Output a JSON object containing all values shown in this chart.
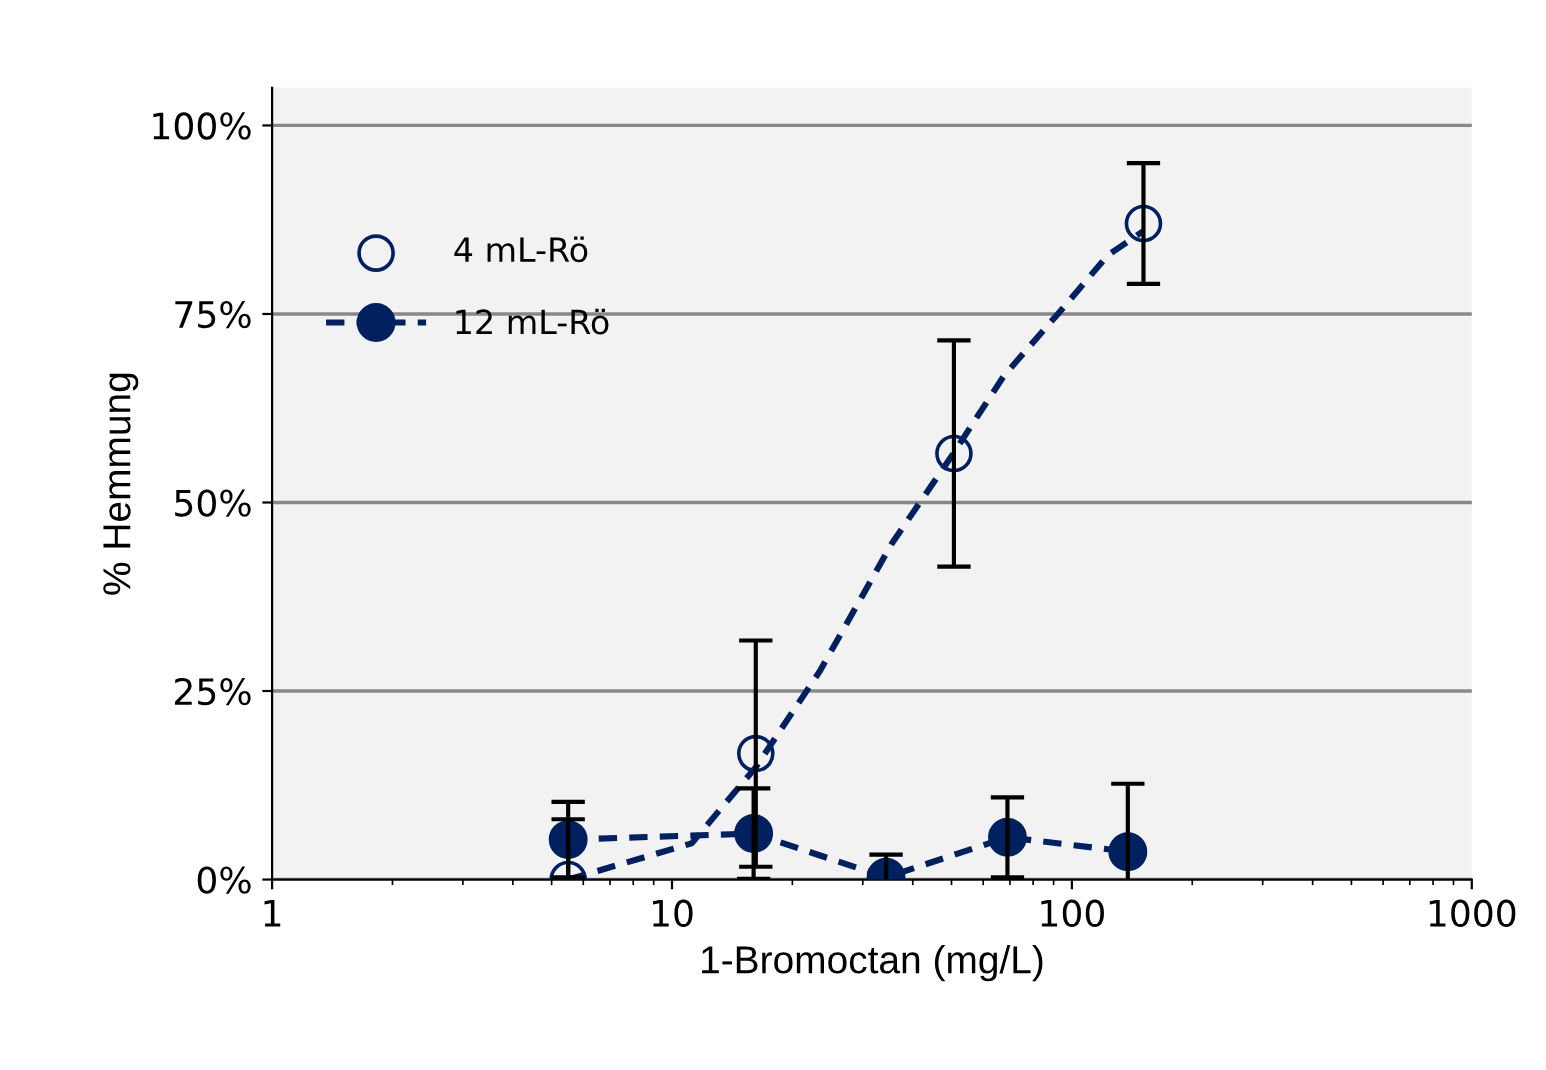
{
  "chart_data": {
    "type": "line",
    "xlabel": "1-Bromoctan (mg/L)",
    "ylabel": "% Hemmung",
    "log": "x",
    "xlim": [
      1,
      1000
    ],
    "xticks": [
      1,
      10,
      100,
      1000
    ],
    "ylim": [
      0,
      105
    ],
    "yticks": [
      {
        "value": 0,
        "label": "0%"
      },
      {
        "value": 25,
        "label": "25%"
      },
      {
        "value": 50,
        "label": "50%"
      },
      {
        "value": 75,
        "label": "75%"
      },
      {
        "value": 100,
        "label": "100%"
      }
    ],
    "grid": "y",
    "legend": "top left",
    "series": [
      {
        "name": "4 mL-Rö",
        "type": "scatter",
        "marker": "circle",
        "color": "#002060",
        "x": [
          5.5,
          16.2,
          50.7,
          151
        ],
        "values": [
          0,
          16.7,
          56.5,
          87
        ],
        "errors": [
          [
            0,
            8
          ],
          15,
          15,
          8
        ]
      },
      {
        "name": "12 mL-Rö",
        "marker": "circle",
        "line_style": "dashed",
        "color": "#002060",
        "x": [
          5.5,
          16,
          34.3,
          69,
          138
        ],
        "values": [
          5.3,
          6.1,
          0.3,
          5.6,
          3.7
        ],
        "errors": [
          5,
          6,
          3,
          5.3,
          9
        ]
      },
      {
        "marker": "none",
        "line_style": "dashed",
        "color": "#002060",
        "x": [
          5.5,
          11.2,
          16.2,
          23.4,
          35.5,
          50.1,
          67.6,
          93.3,
          123,
          151
        ],
        "values": [
          0,
          4.8,
          14.9,
          27.6,
          44.6,
          56.2,
          66.8,
          75.3,
          82.8,
          86
        ]
      }
    ]
  }
}
